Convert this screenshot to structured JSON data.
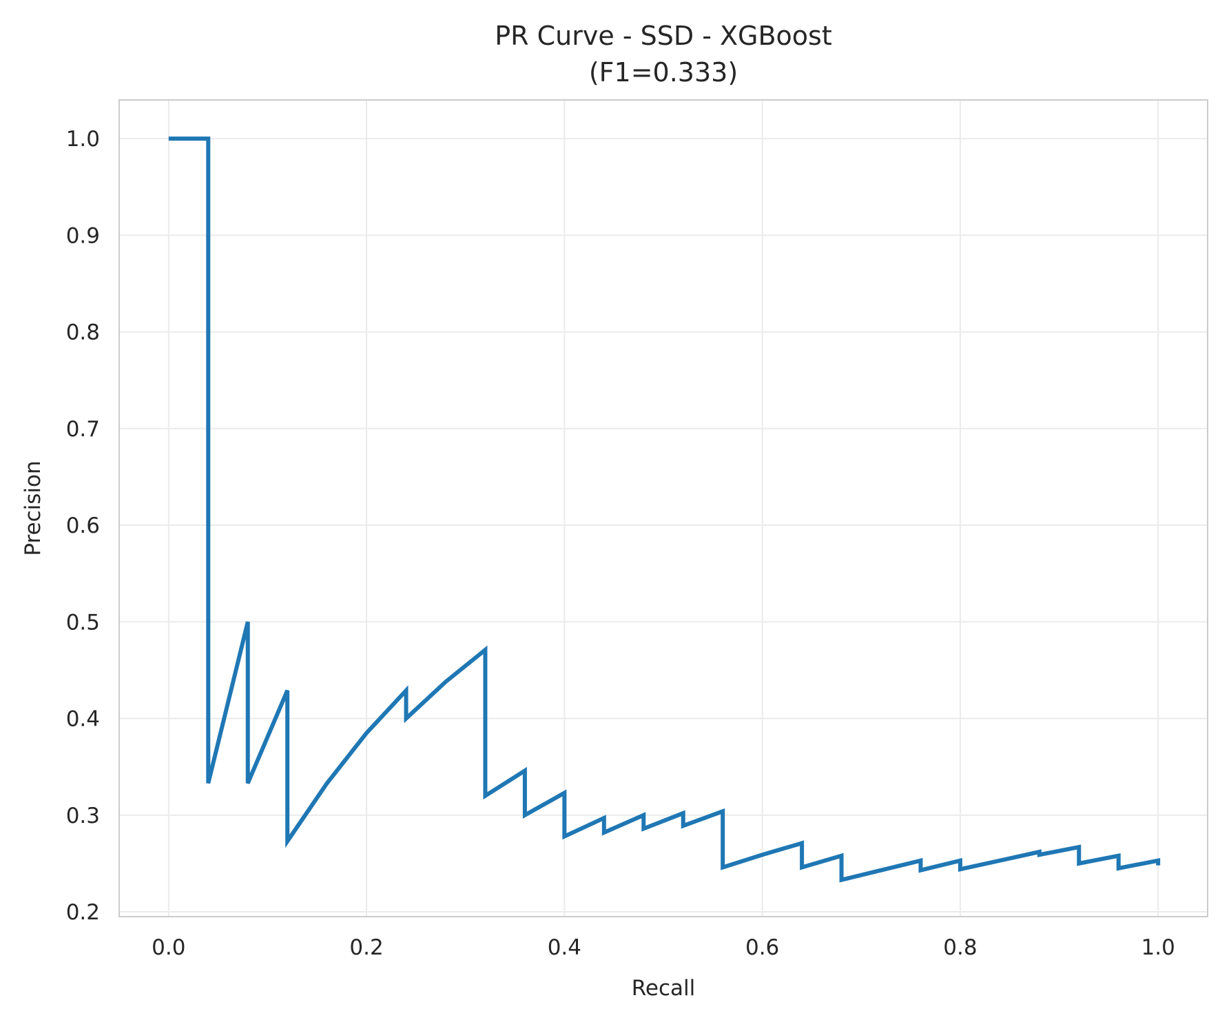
{
  "chart_data": {
    "type": "line",
    "title": "PR Curve - SSD - XGBoost",
    "subtitle": "(F1=0.333)",
    "xlabel": "Recall",
    "ylabel": "Precision",
    "xlim": [
      -0.05,
      1.05
    ],
    "ylim": [
      0.195,
      1.04
    ],
    "xticks": [
      0.0,
      0.2,
      0.4,
      0.6,
      0.8,
      1.0
    ],
    "xtick_labels": [
      "0.0",
      "0.2",
      "0.4",
      "0.6",
      "0.8",
      "1.0"
    ],
    "yticks": [
      0.2,
      0.3,
      0.4,
      0.5,
      0.6,
      0.7,
      0.8,
      0.9,
      1.0
    ],
    "ytick_labels": [
      "0.2",
      "0.3",
      "0.4",
      "0.5",
      "0.6",
      "0.7",
      "0.8",
      "0.9",
      "1.0"
    ],
    "grid": true,
    "legend": "none",
    "series": [
      {
        "color": "#1f77b4",
        "x": [
          0.0,
          0.04,
          0.04,
          0.08,
          0.08,
          0.12,
          0.12,
          0.16,
          0.2,
          0.24,
          0.24,
          0.28,
          0.32,
          0.32,
          0.36,
          0.36,
          0.4,
          0.4,
          0.44,
          0.44,
          0.48,
          0.48,
          0.52,
          0.52,
          0.56,
          0.56,
          0.6,
          0.64,
          0.64,
          0.68,
          0.68,
          0.72,
          0.76,
          0.76,
          0.8,
          0.8,
          0.84,
          0.88,
          0.88,
          0.92,
          0.92,
          0.96,
          0.96,
          1.0,
          1.0
        ],
        "y": [
          1.0,
          1.0,
          0.333,
          0.5,
          0.333,
          0.429,
          0.273,
          0.333,
          0.385,
          0.429,
          0.4,
          0.438,
          0.471,
          0.32,
          0.346,
          0.3,
          0.323,
          0.278,
          0.297,
          0.282,
          0.3,
          0.286,
          0.302,
          0.289,
          0.304,
          0.246,
          0.259,
          0.271,
          0.246,
          0.258,
          0.233,
          0.243,
          0.253,
          0.243,
          0.253,
          0.244,
          0.253,
          0.262,
          0.259,
          0.267,
          0.25,
          0.258,
          0.245,
          0.253,
          0.248
        ]
      }
    ]
  }
}
